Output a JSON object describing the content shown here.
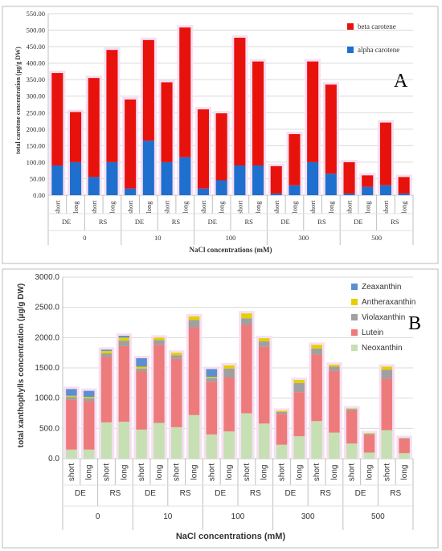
{
  "chart_data": [
    {
      "type": "bar",
      "stacked": true,
      "panel_letter": "A",
      "title": "",
      "xlabel": "NaCl concentrations (mM)",
      "ylabel": "total carotene concentration (μg/g DW)",
      "ylim": [
        0,
        550
      ],
      "yticks": [
        "0.00",
        "50.00",
        "100.00",
        "150.00",
        "200.00",
        "250.00",
        "300.00",
        "350.00",
        "400.00",
        "450.00",
        "500.00",
        "550.00"
      ],
      "durations": [
        "short",
        "long",
        "short",
        "long",
        "short",
        "long",
        "short",
        "long",
        "short",
        "long",
        "short",
        "long",
        "short",
        "long",
        "short",
        "long",
        "short",
        "long",
        "short",
        "long"
      ],
      "treatments": [
        "DE",
        "RS",
        "DE",
        "RS",
        "DE",
        "RS",
        "DE",
        "RS",
        "DE",
        "RS"
      ],
      "concentrations": [
        "0",
        "10",
        "100",
        "300",
        "500"
      ],
      "legend_position": "top-right",
      "series": [
        {
          "name": "alpha carotene",
          "color": "#1f6fcf",
          "values": [
            90,
            100,
            55,
            100,
            20,
            165,
            100,
            115,
            20,
            45,
            90,
            90,
            5,
            30,
            100,
            65,
            5,
            25,
            30,
            5
          ]
        },
        {
          "name": "beta carotene",
          "color": "#e8120c",
          "values": [
            280,
            152,
            300,
            340,
            270,
            305,
            242,
            393,
            240,
            203,
            387,
            315,
            83,
            155,
            305,
            270,
            95,
            35,
            190,
            50
          ]
        }
      ]
    },
    {
      "type": "bar",
      "stacked": true,
      "panel_letter": "B",
      "title": "",
      "xlabel": "NaCl concentrations (mM)",
      "ylabel": "total xanthophylls concentration (μg/g DW)",
      "ylim": [
        0,
        3000
      ],
      "yticks": [
        "0.0",
        "500.0",
        "1000.0",
        "1500.0",
        "2000.0",
        "2500.0",
        "3000.0"
      ],
      "durations": [
        "short",
        "long",
        "short",
        "long",
        "short",
        "long",
        "short",
        "long",
        "short",
        "long",
        "short",
        "long",
        "short",
        "long",
        "short",
        "long",
        "short",
        "long",
        "short",
        "long"
      ],
      "treatments": [
        "DE",
        "RS",
        "DE",
        "RS",
        "DE",
        "RS",
        "DE",
        "RS",
        "DE",
        "RS"
      ],
      "concentrations": [
        "0",
        "10",
        "100",
        "300",
        "500"
      ],
      "legend_position": "top-right",
      "series": [
        {
          "name": "Neoxanthin",
          "color": "#c6e0b4",
          "values": [
            150,
            150,
            600,
            610,
            480,
            590,
            520,
            720,
            400,
            450,
            750,
            580,
            230,
            370,
            620,
            430,
            250,
            100,
            470,
            90
          ]
        },
        {
          "name": "Lutein",
          "color": "#ee7b7b",
          "values": [
            820,
            800,
            1080,
            1250,
            960,
            1290,
            1130,
            1450,
            870,
            890,
            1460,
            1270,
            510,
            730,
            1100,
            1020,
            540,
            290,
            850,
            240
          ]
        },
        {
          "name": "Violaxanthin",
          "color": "#a0a0a0",
          "values": [
            50,
            50,
            60,
            90,
            50,
            80,
            60,
            120,
            60,
            150,
            110,
            90,
            30,
            150,
            100,
            70,
            30,
            20,
            150,
            10
          ]
        },
        {
          "name": "Antheraxanthin",
          "color": "#e6cf00",
          "values": [
            20,
            20,
            40,
            50,
            30,
            40,
            40,
            60,
            20,
            50,
            80,
            50,
            20,
            50,
            60,
            30,
            10,
            10,
            50,
            0
          ]
        },
        {
          "name": "Zeaxanthin",
          "color": "#5b8fd1",
          "values": [
            110,
            100,
            20,
            30,
            140,
            0,
            0,
            0,
            130,
            0,
            0,
            0,
            0,
            0,
            0,
            0,
            0,
            0,
            0,
            0
          ]
        }
      ]
    }
  ]
}
